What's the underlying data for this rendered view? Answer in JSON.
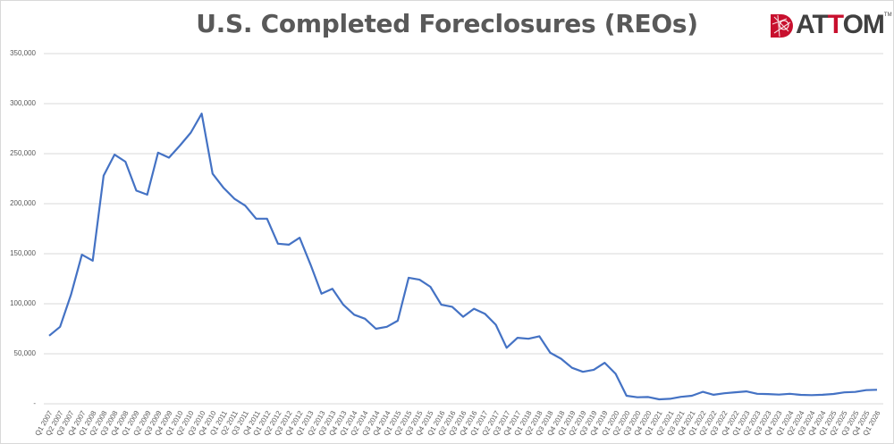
{
  "title": "U.S. Completed Foreclosures (REOs)",
  "logo": {
    "icon": "attom-globe-icon",
    "text_parts": [
      "A",
      "T",
      "T",
      "O",
      "M"
    ],
    "red_index": 2,
    "trademark": "TM",
    "brand_red": "#c8102e",
    "brand_gray": "#404040"
  },
  "colors": {
    "line": "#4472c4",
    "grid": "#d9d9d9",
    "axis_text": "#595959",
    "title": "#595959"
  },
  "chart_data": {
    "type": "line",
    "title": "U.S. Completed Foreclosures (REOs)",
    "xlabel": "",
    "ylabel": "",
    "ylim": [
      0,
      350000
    ],
    "yticks": [
      0,
      50000,
      100000,
      150000,
      200000,
      250000,
      300000,
      350000
    ],
    "ytick_labels": [
      "-",
      "50,000",
      "100,000",
      "150,000",
      "200,000",
      "250,000",
      "300,000",
      "350,000"
    ],
    "grid": true,
    "legend": "none",
    "categories": [
      "Q1 2007",
      "Q2 2007",
      "Q3 2007",
      "Q4 2007",
      "Q1 2008",
      "Q2 2008",
      "Q3 2008",
      "Q4 2008",
      "Q1 2009",
      "Q2 2009",
      "Q3 2009",
      "Q4 2009",
      "Q1 2010",
      "Q2 2010",
      "Q3 2010",
      "Q4 2010",
      "Q1 2011",
      "Q2 2011",
      "Q3 2011",
      "Q4 2011",
      "Q1 2012",
      "Q2 2012",
      "Q3 2012",
      "Q4 2012",
      "Q1 2013",
      "Q2 2013",
      "Q3 2013",
      "Q4 2013",
      "Q1 2014",
      "Q2 2014",
      "Q3 2014",
      "Q4 2014",
      "Q1 2015",
      "Q2 2015",
      "Q3 2015",
      "Q4 2015",
      "Q1 2016",
      "Q2 2016",
      "Q3 2016",
      "Q4 2016",
      "Q1 2017",
      "Q2 2017",
      "Q3 2017",
      "Q4 2017",
      "Q1 2018",
      "Q2 2018",
      "Q3 2018",
      "Q4 2018",
      "Q1 2019",
      "Q2 2019",
      "Q3 2019",
      "Q4 2019",
      "Q1 2020",
      "Q2 2020",
      "Q3 2020",
      "Q4 2020",
      "Q1 2021",
      "Q2 2021",
      "Q3 2021",
      "Q4 2021",
      "Q1 2022",
      "Q2 2022",
      "Q3 2022",
      "Q4 2022",
      "Q1 2023",
      "Q2 2023",
      "Q3 2023",
      "Q4 2023",
      "Q1 2024",
      "Q2 2024",
      "Q3 2024",
      "Q4 2024",
      "Q1 2025",
      "Q2 2025",
      "Q3 2025",
      "Q4 2025",
      "Q1 2026"
    ],
    "series": [
      {
        "name": "Completed Foreclosures (REOs)",
        "color": "#4472c4",
        "values": [
          68000,
          77000,
          109000,
          149000,
          143000,
          228000,
          249000,
          242000,
          213000,
          209000,
          251000,
          246000,
          258000,
          271000,
          290000,
          230000,
          216000,
          205000,
          198000,
          185000,
          185000,
          160000,
          159000,
          166000,
          139000,
          110000,
          115000,
          99000,
          89000,
          85000,
          75000,
          77000,
          83000,
          126000,
          124000,
          117000,
          99000,
          97000,
          87000,
          95000,
          90000,
          79000,
          56000,
          66000,
          65000,
          67500,
          51000,
          45000,
          36000,
          32000,
          34000,
          41000,
          30000,
          8000,
          6500,
          6800,
          4500,
          5000,
          7000,
          8000,
          12000,
          9000,
          10500,
          11500,
          12400,
          10000,
          9700,
          9200,
          10000,
          8900,
          8700,
          9000,
          9800,
          11400,
          11900,
          13700,
          14000
        ]
      }
    ]
  }
}
